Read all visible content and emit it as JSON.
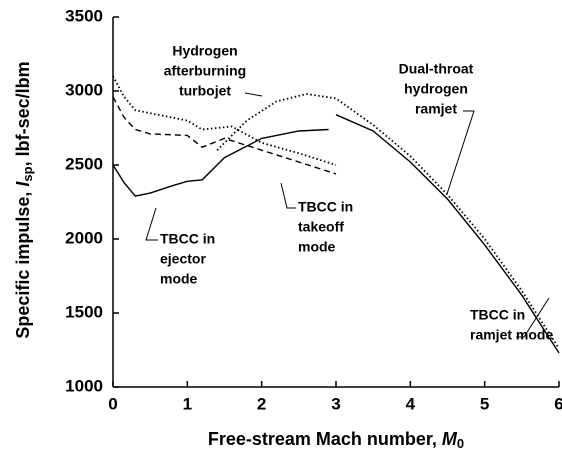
{
  "chart_data": {
    "type": "line",
    "x_label": {
      "prefix": "Free-stream Mach number, ",
      "symbol": "M",
      "subscript": "0"
    },
    "y_label": {
      "prefix": "Specific impulse, ",
      "symbol": "I",
      "subscript": "sp",
      "suffix": ", lbf-sec/lbm"
    },
    "xlim": [
      0,
      6
    ],
    "xticks": [
      0,
      1,
      2,
      3,
      4,
      5,
      6
    ],
    "ylim": [
      1000,
      3500
    ],
    "yticks": [
      1000,
      1500,
      2000,
      2500,
      3000,
      3500
    ],
    "series": [
      {
        "name": "TBCC in ejector mode",
        "color": "#000000",
        "style": "solid",
        "x": [
          0,
          0.15,
          0.3,
          0.5,
          0.8,
          1,
          1.2,
          1.5,
          2,
          2.5,
          2.9
        ],
        "values": [
          2500,
          2380,
          2290,
          2310,
          2360,
          2390,
          2400,
          2550,
          2680,
          2730,
          2740
        ]
      },
      {
        "name": "TBCC in takeoff mode",
        "color": "#000000",
        "style": "dashed",
        "x": [
          0,
          0.15,
          0.3,
          0.5,
          1,
          1.2,
          1.5,
          2,
          2.5,
          3
        ],
        "values": [
          2960,
          2820,
          2740,
          2710,
          2700,
          2620,
          2680,
          2600,
          2520,
          2440
        ]
      },
      {
        "name": "Hydrogen afterburning turbojet",
        "color": "#000000",
        "style": "dotted",
        "x": [
          0,
          0.15,
          0.3,
          0.5,
          1,
          1.2,
          1.6,
          2,
          2.5,
          3
        ],
        "values": [
          3100,
          2960,
          2870,
          2850,
          2800,
          2740,
          2760,
          2650,
          2580,
          2500
        ]
      },
      {
        "name": "Dual-throat hydrogen ramjet",
        "color": "#000000",
        "style": "dotted",
        "x": [
          1.4,
          1.8,
          2.2,
          2.6,
          3,
          3.5,
          4,
          4.5,
          5,
          5.5,
          6
        ],
        "values": [
          2600,
          2800,
          2930,
          2980,
          2950,
          2770,
          2560,
          2300,
          2000,
          1650,
          1260
        ]
      },
      {
        "name": "TBCC in ramjet mode",
        "color": "#000000",
        "style": "solid",
        "x": [
          3,
          3.5,
          4,
          4.5,
          5,
          5.5,
          6
        ],
        "values": [
          2840,
          2730,
          2520,
          2270,
          1960,
          1620,
          1230
        ]
      }
    ],
    "annotations": [
      {
        "lines": [
          "Hydrogen",
          "afterburning",
          "turbojet"
        ]
      },
      {
        "lines": [
          "Dual-throat",
          "hydrogen",
          "ramjet"
        ]
      },
      {
        "lines": [
          "TBCC in",
          "takeoff",
          "mode"
        ]
      },
      {
        "lines": [
          "TBCC in",
          "ejector",
          "mode"
        ]
      },
      {
        "lines": [
          "TBCC in",
          "ramjet mode"
        ]
      }
    ]
  }
}
